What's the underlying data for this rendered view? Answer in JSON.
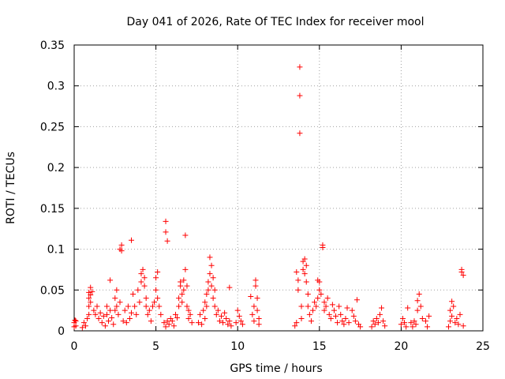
{
  "chart_data": {
    "type": "scatter",
    "title": "Day 041 of 2026, Rate Of TEC Index for receiver mool",
    "xlabel": "GPS time / hours",
    "ylabel": "ROTI / TECUs",
    "xlim": [
      0,
      25
    ],
    "ylim": [
      0,
      0.35
    ],
    "xticks": [
      0,
      5,
      10,
      15,
      20,
      25
    ],
    "yticks": [
      0,
      0.05,
      0.1,
      0.15,
      0.2,
      0.25,
      0.3,
      0.35
    ],
    "xtick_labels": [
      "0",
      "5",
      "10",
      "15",
      "20",
      "25"
    ],
    "ytick_labels": [
      "0",
      "0.05",
      "0.1",
      "0.15",
      "0.2",
      "0.25",
      "0.3",
      "0.35"
    ],
    "grid": true,
    "marker": "+",
    "marker_color": "#ff0000",
    "series": [
      {
        "name": "ROTI",
        "points": [
          [
            0.0,
            0.005
          ],
          [
            0.0,
            0.01
          ],
          [
            0.05,
            0.013
          ],
          [
            0.1,
            0.006
          ],
          [
            0.1,
            0.012
          ],
          [
            0.5,
            0.004
          ],
          [
            0.6,
            0.01
          ],
          [
            0.7,
            0.006
          ],
          [
            0.8,
            0.015
          ],
          [
            0.9,
            0.02
          ],
          [
            0.9,
            0.03
          ],
          [
            0.9,
            0.04
          ],
          [
            0.9,
            0.047
          ],
          [
            1.0,
            0.053
          ],
          [
            1.0,
            0.044
          ],
          [
            1.1,
            0.048
          ],
          [
            1.0,
            0.035
          ],
          [
            1.2,
            0.025
          ],
          [
            1.3,
            0.02
          ],
          [
            1.4,
            0.03
          ],
          [
            1.5,
            0.015
          ],
          [
            1.6,
            0.022
          ],
          [
            1.7,
            0.01
          ],
          [
            1.8,
            0.018
          ],
          [
            1.9,
            0.006
          ],
          [
            2.0,
            0.02
          ],
          [
            2.0,
            0.03
          ],
          [
            2.1,
            0.012
          ],
          [
            2.2,
            0.025
          ],
          [
            2.2,
            0.062
          ],
          [
            2.3,
            0.016
          ],
          [
            2.4,
            0.008
          ],
          [
            2.5,
            0.025
          ],
          [
            2.5,
            0.04
          ],
          [
            2.6,
            0.03
          ],
          [
            2.6,
            0.05
          ],
          [
            2.7,
            0.02
          ],
          [
            2.8,
            0.035
          ],
          [
            2.8,
            0.1
          ],
          [
            2.9,
            0.105
          ],
          [
            2.9,
            0.098
          ],
          [
            3.0,
            0.012
          ],
          [
            3.1,
            0.025
          ],
          [
            3.2,
            0.01
          ],
          [
            3.3,
            0.03
          ],
          [
            3.4,
            0.015
          ],
          [
            3.5,
            0.022
          ],
          [
            3.5,
            0.111
          ],
          [
            3.6,
            0.045
          ],
          [
            3.7,
            0.03
          ],
          [
            3.8,
            0.02
          ],
          [
            3.9,
            0.05
          ],
          [
            4.0,
            0.035
          ],
          [
            4.1,
            0.06
          ],
          [
            4.1,
            0.07
          ],
          [
            4.2,
            0.075
          ],
          [
            4.3,
            0.065
          ],
          [
            4.3,
            0.055
          ],
          [
            4.4,
            0.04
          ],
          [
            4.4,
            0.03
          ],
          [
            4.5,
            0.02
          ],
          [
            4.6,
            0.025
          ],
          [
            4.7,
            0.012
          ],
          [
            4.8,
            0.03
          ],
          [
            4.9,
            0.035
          ],
          [
            5.0,
            0.065
          ],
          [
            5.0,
            0.05
          ],
          [
            5.1,
            0.072
          ],
          [
            5.1,
            0.04
          ],
          [
            5.2,
            0.03
          ],
          [
            5.3,
            0.02
          ],
          [
            5.5,
            0.01
          ],
          [
            5.6,
            0.121
          ],
          [
            5.6,
            0.134
          ],
          [
            5.7,
            0.11
          ],
          [
            5.6,
            0.005
          ],
          [
            5.7,
            0.012
          ],
          [
            5.8,
            0.008
          ],
          [
            5.9,
            0.015
          ],
          [
            6.0,
            0.012
          ],
          [
            6.1,
            0.006
          ],
          [
            6.2,
            0.02
          ],
          [
            6.3,
            0.016
          ],
          [
            6.4,
            0.03
          ],
          [
            6.4,
            0.04
          ],
          [
            6.5,
            0.055
          ],
          [
            6.5,
            0.06
          ],
          [
            6.6,
            0.045
          ],
          [
            6.6,
            0.035
          ],
          [
            6.7,
            0.062
          ],
          [
            6.7,
            0.05
          ],
          [
            6.8,
            0.075
          ],
          [
            6.8,
            0.117
          ],
          [
            6.9,
            0.055
          ],
          [
            6.9,
            0.03
          ],
          [
            7.0,
            0.025
          ],
          [
            7.1,
            0.02
          ],
          [
            7.2,
            0.01
          ],
          [
            7.0,
            0.015
          ],
          [
            7.6,
            0.01
          ],
          [
            7.7,
            0.02
          ],
          [
            7.8,
            0.008
          ],
          [
            7.9,
            0.025
          ],
          [
            8.0,
            0.035
          ],
          [
            8.0,
            0.015
          ],
          [
            8.1,
            0.045
          ],
          [
            8.1,
            0.03
          ],
          [
            8.2,
            0.06
          ],
          [
            8.2,
            0.05
          ],
          [
            8.3,
            0.09
          ],
          [
            8.3,
            0.07
          ],
          [
            8.4,
            0.08
          ],
          [
            8.4,
            0.055
          ],
          [
            8.5,
            0.04
          ],
          [
            8.5,
            0.065
          ],
          [
            8.6,
            0.05
          ],
          [
            8.6,
            0.03
          ],
          [
            8.7,
            0.02
          ],
          [
            8.8,
            0.025
          ],
          [
            8.9,
            0.012
          ],
          [
            9.0,
            0.018
          ],
          [
            9.1,
            0.01
          ],
          [
            9.2,
            0.022
          ],
          [
            9.3,
            0.015
          ],
          [
            9.4,
            0.008
          ],
          [
            9.5,
            0.053
          ],
          [
            9.5,
            0.012
          ],
          [
            9.6,
            0.006
          ],
          [
            9.9,
            0.01
          ],
          [
            10.0,
            0.025
          ],
          [
            10.1,
            0.018
          ],
          [
            10.2,
            0.012
          ],
          [
            10.3,
            0.008
          ],
          [
            10.8,
            0.042
          ],
          [
            10.9,
            0.02
          ],
          [
            11.0,
            0.03
          ],
          [
            11.0,
            0.012
          ],
          [
            11.1,
            0.055
          ],
          [
            11.1,
            0.062
          ],
          [
            11.2,
            0.04
          ],
          [
            11.2,
            0.025
          ],
          [
            11.3,
            0.015
          ],
          [
            11.3,
            0.008
          ],
          [
            13.5,
            0.006
          ],
          [
            13.6,
            0.01
          ],
          [
            13.6,
            0.072
          ],
          [
            13.7,
            0.062
          ],
          [
            13.7,
            0.05
          ],
          [
            13.8,
            0.323
          ],
          [
            13.8,
            0.288
          ],
          [
            13.8,
            0.242
          ],
          [
            13.9,
            0.03
          ],
          [
            13.9,
            0.015
          ],
          [
            14.0,
            0.075
          ],
          [
            14.0,
            0.085
          ],
          [
            14.1,
            0.088
          ],
          [
            14.1,
            0.07
          ],
          [
            14.2,
            0.08
          ],
          [
            14.2,
            0.06
          ],
          [
            14.3,
            0.045
          ],
          [
            14.3,
            0.03
          ],
          [
            14.4,
            0.02
          ],
          [
            14.5,
            0.012
          ],
          [
            14.6,
            0.025
          ],
          [
            14.7,
            0.035
          ],
          [
            14.8,
            0.03
          ],
          [
            14.9,
            0.04
          ],
          [
            14.9,
            0.062
          ],
          [
            15.0,
            0.06
          ],
          [
            15.0,
            0.05
          ],
          [
            15.1,
            0.045
          ],
          [
            15.2,
            0.102
          ],
          [
            15.2,
            0.105
          ],
          [
            15.3,
            0.035
          ],
          [
            15.3,
            0.025
          ],
          [
            15.4,
            0.03
          ],
          [
            15.5,
            0.04
          ],
          [
            15.6,
            0.02
          ],
          [
            15.7,
            0.015
          ],
          [
            15.8,
            0.032
          ],
          [
            15.9,
            0.025
          ],
          [
            16.0,
            0.018
          ],
          [
            16.1,
            0.01
          ],
          [
            16.2,
            0.03
          ],
          [
            16.3,
            0.02
          ],
          [
            16.4,
            0.012
          ],
          [
            16.5,
            0.008
          ],
          [
            16.6,
            0.015
          ],
          [
            16.7,
            0.028
          ],
          [
            16.8,
            0.01
          ],
          [
            17.0,
            0.025
          ],
          [
            17.1,
            0.018
          ],
          [
            17.2,
            0.012
          ],
          [
            17.3,
            0.038
          ],
          [
            17.4,
            0.008
          ],
          [
            17.5,
            0.005
          ],
          [
            18.2,
            0.005
          ],
          [
            18.3,
            0.012
          ],
          [
            18.4,
            0.008
          ],
          [
            18.5,
            0.015
          ],
          [
            18.6,
            0.01
          ],
          [
            18.7,
            0.02
          ],
          [
            18.8,
            0.028
          ],
          [
            18.9,
            0.012
          ],
          [
            19.0,
            0.006
          ],
          [
            20.0,
            0.008
          ],
          [
            20.1,
            0.015
          ],
          [
            20.2,
            0.01
          ],
          [
            20.3,
            0.005
          ],
          [
            20.4,
            0.028
          ],
          [
            20.6,
            0.01
          ],
          [
            20.7,
            0.005
          ],
          [
            20.8,
            0.012
          ],
          [
            20.9,
            0.008
          ],
          [
            21.0,
            0.025
          ],
          [
            21.0,
            0.037
          ],
          [
            21.1,
            0.045
          ],
          [
            21.2,
            0.03
          ],
          [
            21.3,
            0.015
          ],
          [
            21.5,
            0.012
          ],
          [
            21.6,
            0.005
          ],
          [
            21.7,
            0.018
          ],
          [
            22.9,
            0.005
          ],
          [
            23.0,
            0.012
          ],
          [
            23.0,
            0.025
          ],
          [
            23.1,
            0.036
          ],
          [
            23.1,
            0.018
          ],
          [
            23.2,
            0.03
          ],
          [
            23.3,
            0.01
          ],
          [
            23.4,
            0.015
          ],
          [
            23.5,
            0.008
          ],
          [
            23.6,
            0.02
          ],
          [
            23.7,
            0.075
          ],
          [
            23.7,
            0.072
          ],
          [
            23.8,
            0.068
          ],
          [
            23.8,
            0.006
          ]
        ]
      }
    ]
  }
}
